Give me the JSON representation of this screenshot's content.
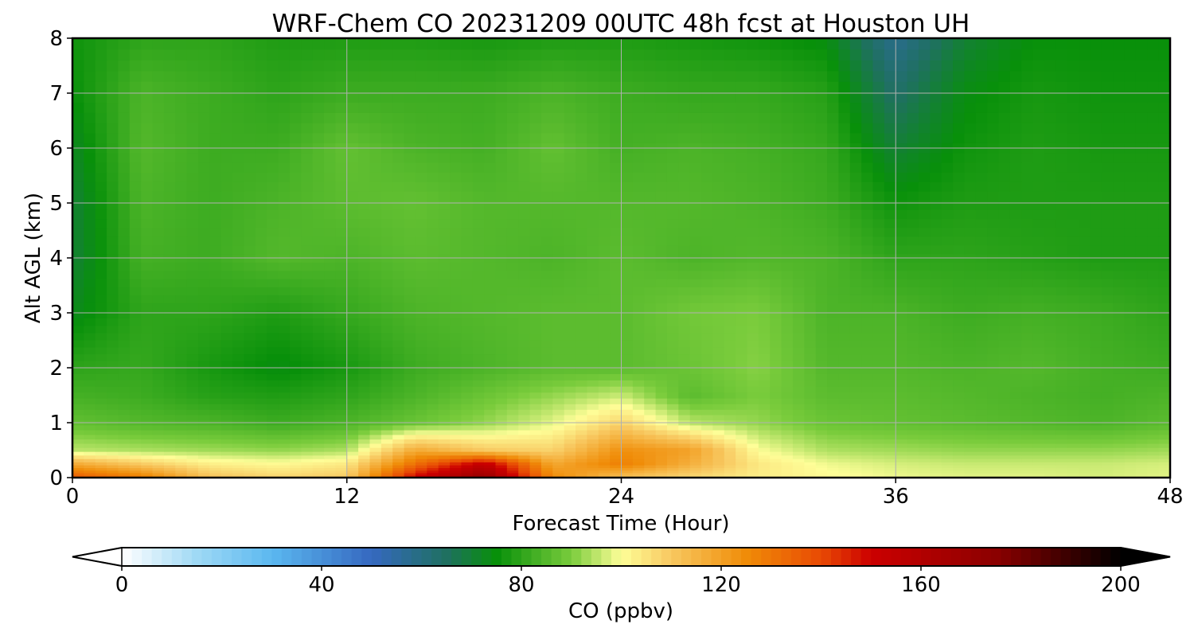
{
  "chart_data": {
    "type": "heatmap",
    "title": "WRF-Chem CO  20231209 00UTC 48h fcst at Houston UH",
    "xlabel": "Forecast Time (Hour)",
    "ylabel": "Alt AGL (km)",
    "xlim": [
      0,
      48
    ],
    "ylim": [
      0,
      8
    ],
    "x_ticks": [
      0,
      12,
      24,
      36,
      48
    ],
    "y_ticks": [
      0,
      1,
      2,
      3,
      4,
      5,
      6,
      7,
      8
    ],
    "grid": true,
    "colorbar": {
      "label": "CO  (ppbv)",
      "range": [
        0,
        200
      ],
      "ticks": [
        0,
        40,
        80,
        120,
        160,
        200
      ],
      "extend": "both",
      "colors": [
        {
          "v": 0,
          "c": "#ffffff"
        },
        {
          "v": 15,
          "c": "#9fd9f5"
        },
        {
          "v": 30,
          "c": "#5bb8f0"
        },
        {
          "v": 50,
          "c": "#3568c0"
        },
        {
          "v": 65,
          "c": "#1f7060"
        },
        {
          "v": 75,
          "c": "#08900a"
        },
        {
          "v": 90,
          "c": "#7acc3c"
        },
        {
          "v": 100,
          "c": "#fefe98"
        },
        {
          "v": 110,
          "c": "#f8c860"
        },
        {
          "v": 125,
          "c": "#f08c08"
        },
        {
          "v": 140,
          "c": "#e84a04"
        },
        {
          "v": 150,
          "c": "#cc0000"
        },
        {
          "v": 175,
          "c": "#8b0000"
        },
        {
          "v": 200,
          "c": "#000000"
        }
      ]
    },
    "x": [
      0,
      3,
      6,
      9,
      12,
      15,
      18,
      21,
      24,
      27,
      30,
      33,
      36,
      39,
      42,
      45,
      48
    ],
    "y": [
      0,
      0.25,
      0.5,
      1,
      1.5,
      2,
      3,
      4,
      5,
      6,
      7,
      8
    ],
    "z": [
      [
        138,
        130,
        112,
        108,
        110,
        152,
        172,
        126,
        110,
        106,
        103,
        101,
        99,
        98,
        98,
        97,
        98
      ],
      [
        118,
        110,
        103,
        101,
        104,
        132,
        155,
        118,
        128,
        116,
        104,
        99,
        97,
        96,
        96,
        96,
        97
      ],
      [
        95,
        94,
        93,
        92,
        94,
        118,
        110,
        108,
        124,
        120,
        100,
        94,
        93,
        92,
        92,
        92,
        93
      ],
      [
        87,
        85,
        84,
        82,
        84,
        88,
        92,
        98,
        108,
        95,
        92,
        88,
        87,
        86,
        85,
        84,
        86
      ],
      [
        83,
        82,
        79,
        78,
        80,
        84,
        88,
        92,
        96,
        86,
        90,
        86,
        86,
        85,
        84,
        83,
        84
      ],
      [
        80,
        81,
        77,
        74,
        77,
        82,
        84,
        86,
        86,
        88,
        91,
        85,
        85,
        84,
        85,
        83,
        82
      ],
      [
        73,
        80,
        80,
        78,
        81,
        84,
        85,
        86,
        86,
        89,
        90,
        84,
        84,
        82,
        83,
        82,
        80
      ],
      [
        70,
        83,
        82,
        85,
        84,
        86,
        85,
        84,
        86,
        84,
        85,
        84,
        80,
        80,
        79,
        78,
        78
      ],
      [
        70,
        84,
        82,
        84,
        86,
        87,
        85,
        85,
        85,
        85,
        84,
        82,
        76,
        78,
        78,
        78,
        78
      ],
      [
        72,
        85,
        82,
        82,
        87,
        84,
        83,
        87,
        83,
        84,
        83,
        81,
        70,
        76,
        78,
        77,
        77
      ],
      [
        75,
        84,
        82,
        80,
        82,
        82,
        82,
        84,
        82,
        81,
        81,
        79,
        64,
        74,
        77,
        76,
        76
      ],
      [
        76,
        80,
        80,
        78,
        78,
        78,
        77,
        78,
        78,
        77,
        76,
        74,
        58,
        70,
        75,
        75,
        75
      ]
    ]
  }
}
